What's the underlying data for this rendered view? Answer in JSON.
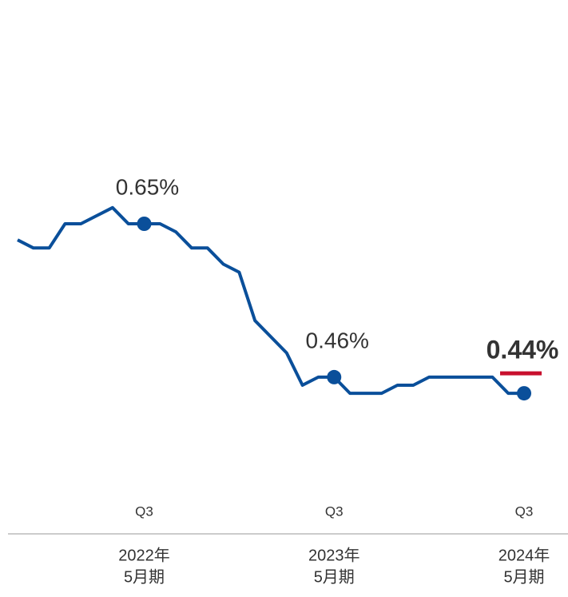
{
  "chart_data": {
    "type": "line",
    "categories": [
      null,
      null,
      null,
      null,
      null,
      null,
      null,
      null,
      "Q3",
      null,
      null,
      null,
      null,
      null,
      null,
      null,
      null,
      null,
      null,
      null,
      "Q3",
      null,
      null,
      null,
      null,
      null,
      null,
      null,
      null,
      null,
      null,
      null,
      "Q3"
    ],
    "periods": [
      [
        "2022年",
        "5月期"
      ],
      [
        "2023年",
        "5月期"
      ],
      [
        "2024年",
        "5月期"
      ]
    ],
    "series": [
      {
        "color": "#0a4f9a",
        "values": [
          0.63,
          0.62,
          0.62,
          0.65,
          0.65,
          0.66,
          0.67,
          0.65,
          0.65,
          0.65,
          0.64,
          0.62,
          0.62,
          0.6,
          0.59,
          0.53,
          0.51,
          0.49,
          0.45,
          0.46,
          0.46,
          0.44,
          0.44,
          0.44,
          0.45,
          0.45,
          0.46,
          0.46,
          0.46,
          0.46,
          0.46,
          0.44,
          0.44
        ],
        "value_labels": [
          null,
          null,
          null,
          null,
          null,
          null,
          null,
          null,
          "0.65%",
          null,
          null,
          null,
          null,
          null,
          null,
          null,
          null,
          null,
          null,
          null,
          "0.46%",
          null,
          null,
          null,
          null,
          null,
          null,
          null,
          null,
          null,
          null,
          null,
          "0.44%"
        ]
      }
    ],
    "ylim": [
      0.3,
      0.9
    ],
    "highlight_color": "#c8102e"
  }
}
